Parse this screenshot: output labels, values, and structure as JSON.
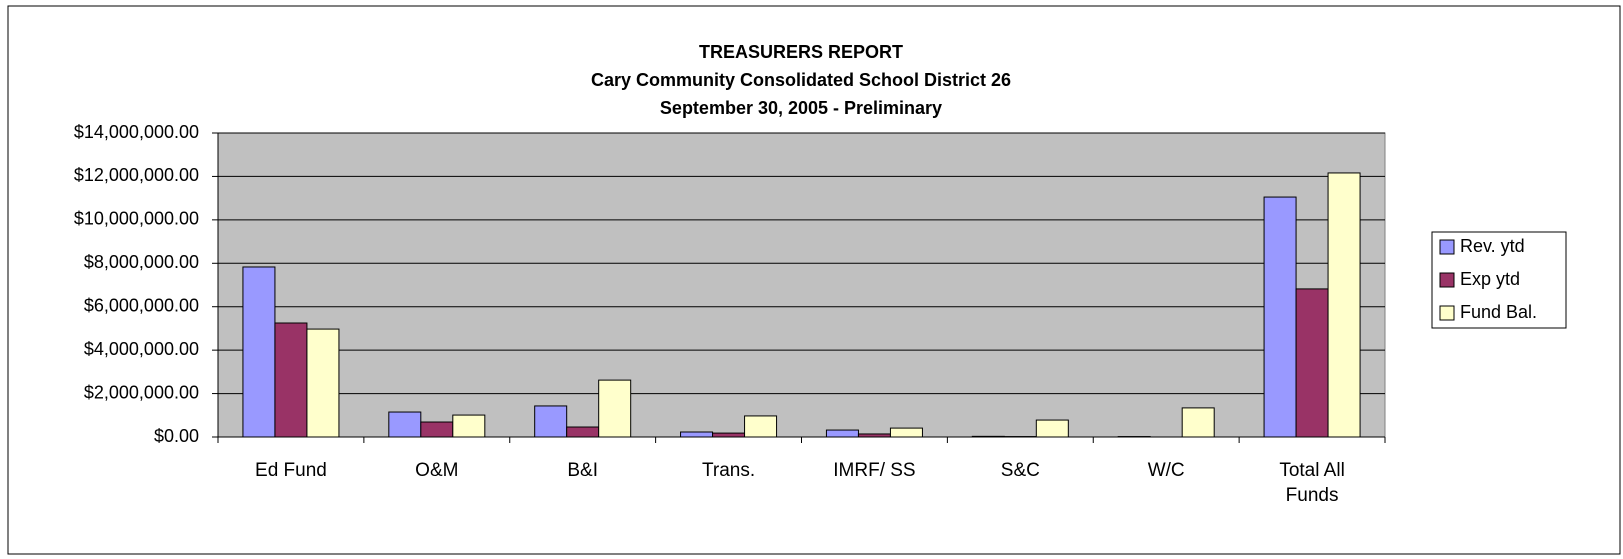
{
  "chart_data": {
    "type": "bar",
    "title": [
      "TREASURERS REPORT",
      "Cary Community Consolidated School District 26",
      "September 30, 2005 - Preliminary"
    ],
    "categories": [
      "Ed Fund",
      "O&M",
      "B&I",
      "Trans.",
      "IMRF/ SS",
      "S&C",
      "W/C",
      "Total All Funds"
    ],
    "series": [
      {
        "name": "Rev. ytd",
        "color": "#9999ff",
        "values": [
          7830000,
          1150000,
          1430000,
          230000,
          320000,
          30000,
          20000,
          11050000
        ]
      },
      {
        "name": "Exp ytd",
        "color": "#993366",
        "values": [
          5250000,
          690000,
          460000,
          180000,
          140000,
          20000,
          0,
          6820000
        ]
      },
      {
        "name": "Fund Bal.",
        "color": "#ffffcc",
        "values": [
          4970000,
          1010000,
          2620000,
          970000,
          410000,
          780000,
          1340000,
          12160000
        ]
      }
    ],
    "ylim": [
      0,
      14000000
    ],
    "yticks": [
      {
        "value": 0,
        "label": "$0.00"
      },
      {
        "value": 2000000,
        "label": "$2,000,000.00"
      },
      {
        "value": 4000000,
        "label": "$4,000,000.00"
      },
      {
        "value": 6000000,
        "label": "$6,000,000.00"
      },
      {
        "value": 8000000,
        "label": "$8,000,000.00"
      },
      {
        "value": 10000000,
        "label": "$10,000,000.00"
      },
      {
        "value": 12000000,
        "label": "$12,000,000.00"
      },
      {
        "value": 14000000,
        "label": "$14,000,000.00"
      }
    ],
    "grid": true,
    "legend": "right"
  }
}
